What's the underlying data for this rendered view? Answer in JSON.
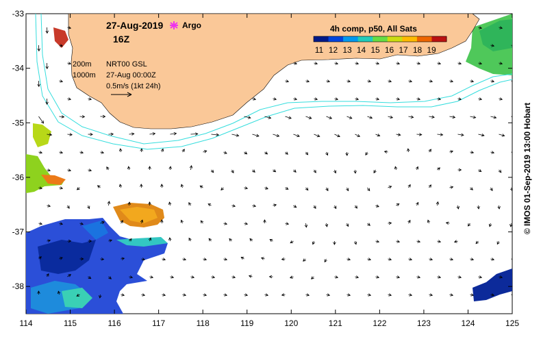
{
  "map": {
    "date": "27-Aug-2019",
    "hour": "16Z",
    "argo_label": "Argo",
    "composite_title": "4h comp, p50, All Sats",
    "colorbar_ticks": [
      "11",
      "12",
      "13",
      "14",
      "15",
      "16",
      "17",
      "18",
      "19"
    ],
    "contour_200": "200m",
    "contour_1000": "1000m",
    "model_name": "NRT00 GSL",
    "model_time": "27-Aug 00:00Z",
    "scale_label": "0.5m/s (1kt 24h)",
    "credit": "© IMOS 01-Sep-2019 13:00 Hobart",
    "lon_ticks": [
      "114",
      "115",
      "116",
      "117",
      "118",
      "119",
      "120",
      "121",
      "122",
      "123",
      "124",
      "125"
    ],
    "lat_ticks": [
      "-33",
      "-34",
      "-35",
      "-36",
      "-37",
      "-38"
    ],
    "extent": {
      "lon_min": 114,
      "lon_max": 125,
      "lat_min": -38.5,
      "lat_max": -33
    }
  },
  "colors": {
    "land": "#fac898",
    "shelf_contour": "#33dddd",
    "argo_marker": "#ee33ee",
    "sst_scale": [
      "#001a88",
      "#0044dd",
      "#0099ee",
      "#22ccbb",
      "#66dd44",
      "#ccdd11",
      "#ffbb00",
      "#ee6600",
      "#bb1111"
    ]
  }
}
